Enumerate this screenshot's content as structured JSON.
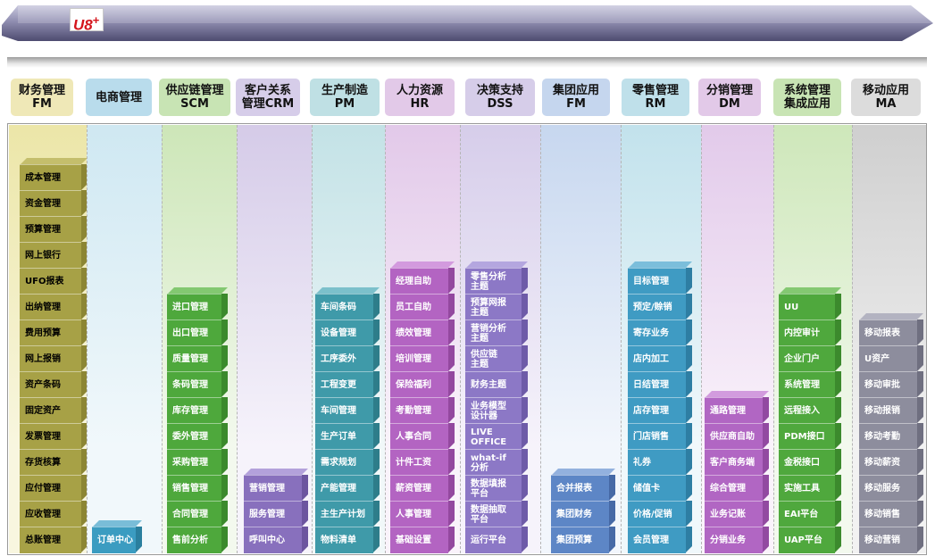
{
  "logo_text": "U8",
  "logo_sup": "+",
  "columns": [
    {
      "header": "财务管理\nFM",
      "hdr_bg": "#efe8b7",
      "col_bg": [
        "#ece6a8",
        "#f8f6df"
      ],
      "face": "#a7a146",
      "side": "#8c8634",
      "topc": "#c4be6c",
      "text": "#000000",
      "items": [
        "成本管理",
        "资金管理",
        "预算管理",
        "网上银行",
        "UFO报表",
        "出纳管理",
        "费用预算",
        "网上报销",
        "资产条码",
        "固定资产",
        "发票管理",
        "存货核算",
        "应付管理",
        "应收管理",
        "总账管理"
      ]
    },
    {
      "header": "电商管理",
      "hdr_bg": "#b9dcec",
      "col_bg": [
        "#cfe8f2",
        "#f1f8fb"
      ],
      "face": "#3b9cc1",
      "side": "#2a7f9e",
      "topc": "#79bdd8",
      "text": "#ffffff",
      "items": [
        "订单中心"
      ]
    },
    {
      "header": "供应链管理\nSCM",
      "hdr_bg": "#c8e4b4",
      "col_bg": [
        "#cde6b8",
        "#f3f9ee"
      ],
      "face": "#4ea83c",
      "side": "#3b8a2c",
      "topc": "#83c871",
      "text": "#ffffff",
      "items": [
        "进口管理",
        "出口管理",
        "质量管理",
        "条码管理",
        "库存管理",
        "委外管理",
        "采购管理",
        "销售管理",
        "合同管理",
        "售前分析"
      ]
    },
    {
      "header": "客户关系\n管理CRM",
      "hdr_bg": "#d6cde9",
      "col_bg": [
        "#d5cbe8",
        "#f6f3fb"
      ],
      "face": "#8870bd",
      "side": "#6c559f",
      "topc": "#b3a1db",
      "text": "#ffffff",
      "items": [
        "营销管理",
        "服务管理",
        "呼叫中心"
      ]
    },
    {
      "header": "生产制造\nPM",
      "hdr_bg": "#bfe0e4",
      "col_bg": [
        "#c3e2e6",
        "#f1f8f9"
      ],
      "face": "#3f9aa9",
      "side": "#2e7d8a",
      "topc": "#7cc0cb",
      "text": "#ffffff",
      "items": [
        "车间条码",
        "设备管理",
        "工序委外",
        "工程变更",
        "车间管理",
        "生产订单",
        "需求规划",
        "产能管理",
        "主生产计划",
        "物料清单"
      ]
    },
    {
      "header": "人力资源\nHR",
      "hdr_bg": "#e2c9e8",
      "col_bg": [
        "#e2c9e9",
        "#faf3fb"
      ],
      "face": "#b364c2",
      "side": "#93489f",
      "topc": "#d39ade",
      "text": "#ffffff",
      "items": [
        "经理自助",
        "员工自助",
        "绩效管理",
        "培训管理",
        "保险福利",
        "考勤管理",
        "人事合同",
        "计件工资",
        "薪资管理",
        "人事管理",
        "基础设置"
      ]
    },
    {
      "header": "决策支持\nDSS",
      "hdr_bg": "#d6cde9",
      "col_bg": [
        "#d6cdea",
        "#f6f3fb"
      ],
      "face": "#8c78c6",
      "side": "#6e5ba8",
      "topc": "#b4a6df",
      "text": "#ffffff",
      "items": [
        "零售分析\n主题",
        "预算网报\n主题",
        "营销分析\n主题",
        "供应链\n主题",
        "财务主题",
        "业务模型\n设计器",
        "LIVE\nOFFICE",
        "what-if\n分析",
        "数据填报\n平台",
        "数据抽取\n平台",
        "运行平台"
      ]
    },
    {
      "header": "集团应用\nFM",
      "hdr_bg": "#c5d6ee",
      "col_bg": [
        "#c7d7ef",
        "#f2f6fc"
      ],
      "face": "#5d86c6",
      "side": "#4669a6",
      "topc": "#93b1de",
      "text": "#ffffff",
      "items": [
        "合并报表",
        "集团财务",
        "集团预算"
      ]
    },
    {
      "header": "零售管理\nRM",
      "hdr_bg": "#bfe0ea",
      "col_bg": [
        "#c2e2ec",
        "#f0f8fb"
      ],
      "face": "#3f9bc3",
      "side": "#2e7ea3",
      "topc": "#7bbedb",
      "text": "#ffffff",
      "items": [
        "目标管理",
        "预定/赊销",
        "寄存业务",
        "店内加工",
        "日结管理",
        "店存管理",
        "门店销售",
        "礼券",
        "储值卡",
        "价格/促销",
        "会员管理"
      ]
    },
    {
      "header": "分销管理\nDM",
      "hdr_bg": "#e2c9e8",
      "col_bg": [
        "#e2caea",
        "#faf3fb"
      ],
      "face": "#b166c3",
      "side": "#924aa1",
      "topc": "#d29bde",
      "text": "#ffffff",
      "items": [
        "通路管理",
        "供应商自助",
        "客户商务端",
        "综合管理",
        "业务记账",
        "分销业务"
      ]
    },
    {
      "header": "系统管理\n集成应用",
      "hdr_bg": "#c8e4b4",
      "col_bg": [
        "#cee7ba",
        "#f3f9ee"
      ],
      "face": "#4fa83d",
      "side": "#3c8a2d",
      "topc": "#84c872",
      "text": "#ffffff",
      "items": [
        "UU",
        "内控审计",
        "企业门户",
        "系统管理",
        "远程接入",
        "PDM接口",
        "金税接口",
        "实施工具",
        "EAI平台",
        "UAP平台"
      ]
    },
    {
      "header": "移动应用\nMA",
      "hdr_bg": "#dcdcdc",
      "col_bg": [
        "#cfcfcf",
        "#f2f2f2"
      ],
      "face": "#8d8d9d",
      "side": "#6f6f80",
      "topc": "#b3b3c1",
      "text": "#ffffff",
      "items": [
        "移动报表",
        "U资产",
        "移动审批",
        "移动报销",
        "移动考勤",
        "移动薪资",
        "移动服务",
        "移动销售",
        "移动营销"
      ]
    }
  ]
}
